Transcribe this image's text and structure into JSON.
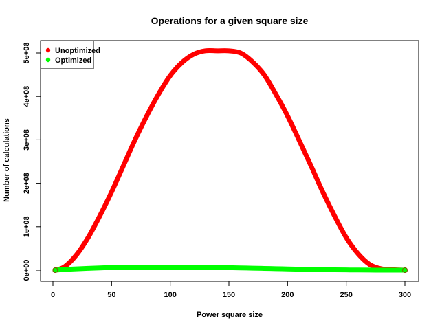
{
  "chart_data": {
    "type": "line",
    "title": "Operations for a given square size",
    "xlabel": "Power square size",
    "ylabel": "Number of calculations",
    "xlim": [
      0,
      300
    ],
    "ylim": [
      0,
      500000000
    ],
    "x_ticks": [
      0,
      50,
      100,
      150,
      200,
      250,
      300
    ],
    "x_tick_labels": [
      "0",
      "50",
      "100",
      "150",
      "200",
      "250",
      "300"
    ],
    "y_ticks": [
      0,
      100000000,
      200000000,
      300000000,
      400000000,
      500000000
    ],
    "y_tick_labels": [
      "0e+00",
      "1e+08",
      "2e+08",
      "3e+08",
      "4e+08",
      "5e+08"
    ],
    "grid": false,
    "legend_position": "top-left",
    "x": [
      2,
      10,
      20,
      30,
      40,
      50,
      60,
      70,
      80,
      90,
      100,
      110,
      120,
      130,
      140,
      150,
      160,
      170,
      180,
      190,
      200,
      210,
      220,
      230,
      240,
      250,
      260,
      270,
      280,
      290,
      300
    ],
    "series": [
      {
        "name": "Unoptimized",
        "color": "#ff0000",
        "values": [
          0,
          8000000,
          35000000,
          75000000,
          125000000,
          180000000,
          240000000,
          300000000,
          355000000,
          405000000,
          448000000,
          478000000,
          497000000,
          505000000,
          505000000,
          505000000,
          500000000,
          480000000,
          450000000,
          405000000,
          355000000,
          298000000,
          240000000,
          180000000,
          125000000,
          75000000,
          38000000,
          13000000,
          3000000,
          1000000,
          0
        ]
      },
      {
        "name": "Optimized",
        "color": "#00ff00",
        "values": [
          0,
          1500000,
          3000000,
          4200000,
          5200000,
          6000000,
          6500000,
          6900000,
          7100000,
          7200000,
          7200000,
          7100000,
          6900000,
          6600000,
          6200000,
          5700000,
          5200000,
          4600000,
          4000000,
          3400000,
          2800000,
          2200000,
          1700000,
          1200000,
          800000,
          500000,
          300000,
          150000,
          50000,
          10000,
          0
        ]
      }
    ]
  }
}
